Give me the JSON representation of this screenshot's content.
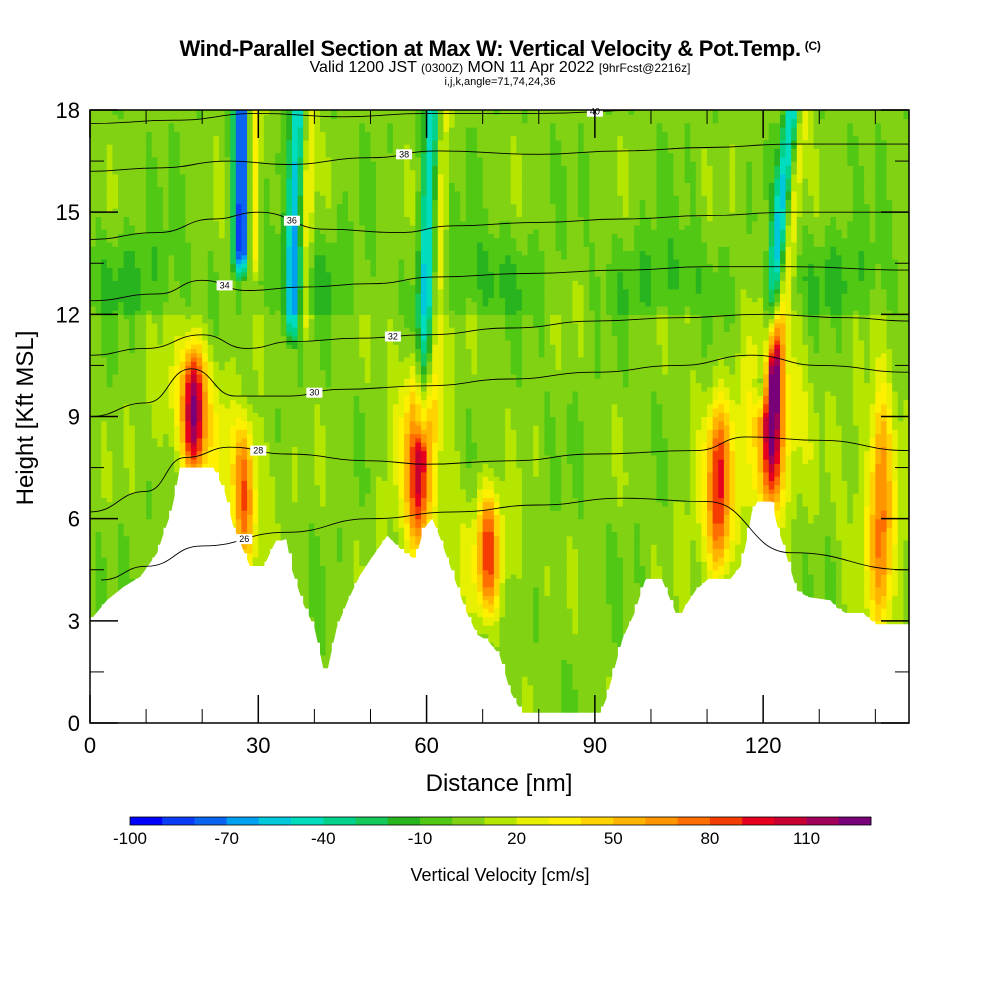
{
  "title": "Wind-Parallel Section at Max W: Vertical Velocity & Pot.Temp.",
  "copyright_mark": "(C)",
  "subtitle_main": "Valid 1200 JST",
  "subtitle_zulu": "(0300Z)",
  "subtitle_date": "MON 11 Apr 2022",
  "subtitle_fcst": "[9hrFcst@2216z]",
  "params": "i,j,k,angle=71,74,24,36",
  "chart_data": {
    "type": "heatmap",
    "xlabel": "Distance [nm]",
    "ylabel": "Height [Kft MSL]",
    "xlim": [
      0,
      146
    ],
    "ylim": [
      0,
      18
    ],
    "x_ticks": [
      0,
      30,
      60,
      90,
      120
    ],
    "y_ticks": [
      0,
      3,
      6,
      9,
      12,
      15,
      18
    ],
    "grid": false,
    "terrain": [
      [
        0,
        3.0
      ],
      [
        1.5,
        3.3
      ],
      [
        3,
        3.6
      ],
      [
        6,
        4.0
      ],
      [
        9,
        4.3
      ],
      [
        12,
        5.0
      ],
      [
        13,
        5.5
      ],
      [
        14.5,
        6.2
      ],
      [
        15.5,
        7.0
      ],
      [
        16,
        7.5
      ],
      [
        22,
        7.5
      ],
      [
        24,
        6.8
      ],
      [
        25.5,
        5.8
      ],
      [
        27,
        5.2
      ],
      [
        28.5,
        4.6
      ],
      [
        31,
        4.6
      ],
      [
        33,
        5.3
      ],
      [
        35,
        5.4
      ],
      [
        36,
        4.5
      ],
      [
        38,
        3.5
      ],
      [
        40,
        2.8
      ],
      [
        42,
        1.3
      ],
      [
        44,
        2.8
      ],
      [
        46,
        3.6
      ],
      [
        48,
        4.3
      ],
      [
        50,
        4.8
      ],
      [
        53,
        5.5
      ],
      [
        56,
        5.0
      ],
      [
        58,
        4.8
      ],
      [
        59.5,
        5.7
      ],
      [
        61,
        6.0
      ],
      [
        62.5,
        5.4
      ],
      [
        64,
        4.7
      ],
      [
        65.5,
        4.0
      ],
      [
        67,
        3.3
      ],
      [
        69,
        2.6
      ],
      [
        71,
        2.4
      ],
      [
        73,
        2.0
      ],
      [
        75,
        0.9
      ],
      [
        77,
        0.3
      ],
      [
        84,
        0.3
      ],
      [
        85,
        0.3
      ],
      [
        91,
        0.3
      ],
      [
        92,
        0.7
      ],
      [
        93,
        1.3
      ],
      [
        95,
        2.5
      ],
      [
        97,
        3.2
      ],
      [
        99,
        4.2
      ],
      [
        102,
        4.2
      ],
      [
        104,
        3.4
      ],
      [
        105,
        3.0
      ],
      [
        106,
        3.4
      ],
      [
        108,
        3.9
      ],
      [
        110,
        4.2
      ],
      [
        114,
        4.2
      ],
      [
        116,
        4.6
      ],
      [
        117,
        5.3
      ],
      [
        118,
        6.2
      ],
      [
        119,
        6.5
      ],
      [
        121.5,
        6.5
      ],
      [
        122.5,
        5.8
      ],
      [
        124,
        5.0
      ],
      [
        126,
        3.9
      ],
      [
        128,
        3.7
      ],
      [
        132,
        3.6
      ],
      [
        133,
        3.4
      ],
      [
        135,
        3.2
      ],
      [
        138,
        3.2
      ],
      [
        140,
        2.9
      ],
      [
        146,
        2.9
      ]
    ],
    "colorbar": {
      "label": "Vertical Velocity [cm/s]",
      "levels": [
        -100,
        -90,
        -80,
        -70,
        -60,
        -50,
        -40,
        -30,
        -20,
        -10,
        0,
        10,
        20,
        30,
        40,
        50,
        60,
        70,
        80,
        90,
        100,
        110,
        120,
        130
      ],
      "tick_labels": [
        "-100",
        "-70",
        "-40",
        "-10",
        "20",
        "50",
        "80",
        "110"
      ],
      "tick_values": [
        -100,
        -70,
        -40,
        -10,
        20,
        50,
        80,
        110
      ],
      "colors": [
        "#0000ff",
        "#0a3cf5",
        "#0a64f0",
        "#00a0f0",
        "#00c8dc",
        "#00dcbe",
        "#00d28c",
        "#14c85a",
        "#28b41e",
        "#50c814",
        "#82d214",
        "#b4e600",
        "#e6f000",
        "#fff000",
        "#ffd200",
        "#ffb400",
        "#ff9600",
        "#ff6e00",
        "#f53c00",
        "#e6001e",
        "#c80032",
        "#a0005a",
        "#780078"
      ]
    },
    "updraft_cores": [
      {
        "x": 18.5,
        "y_bottom": 7.6,
        "y_top": 10.8,
        "w_max": 90
      },
      {
        "x": 27.5,
        "y_bottom": 5.0,
        "y_top": 8.5,
        "w_max": 55
      },
      {
        "x": 58.5,
        "y_bottom": 5.2,
        "y_top": 10.2,
        "w_max": 75
      },
      {
        "x": 71,
        "y_bottom": 3.5,
        "y_top": 6.5,
        "w_max": 60
      },
      {
        "x": 112,
        "y_bottom": 4.5,
        "y_top": 9.0,
        "w_max": 65
      },
      {
        "x": 121.5,
        "y_bottom": 6.6,
        "y_top": 11.5,
        "w_max": 100
      },
      {
        "x": 141,
        "y_bottom": 3.2,
        "y_top": 9.5,
        "w_max": 55
      }
    ],
    "downdraft_bands": [
      {
        "x_top": 27,
        "x_bottom": 27,
        "y_bottom": 14,
        "y_top": 18,
        "w_min": -95
      },
      {
        "x_top": 37,
        "x_bottom": 36,
        "y_bottom": 12,
        "y_top": 18,
        "w_min": -60
      },
      {
        "x_top": 61,
        "x_bottom": 59,
        "y_bottom": 9,
        "y_top": 18,
        "w_min": -55
      },
      {
        "x_top": 125,
        "x_bottom": 120,
        "y_bottom": 10,
        "y_top": 18,
        "w_min": -55
      }
    ],
    "theta_contours": [
      {
        "label": "26",
        "points": [
          [
            2,
            4.2
          ],
          [
            10,
            4.6
          ],
          [
            20,
            5.2
          ],
          [
            35,
            5.6
          ],
          [
            50,
            6.0
          ],
          [
            65,
            6.2
          ],
          [
            80,
            6.4
          ],
          [
            95,
            6.6
          ],
          [
            110,
            6.5
          ],
          [
            125,
            5.0
          ],
          [
            146,
            4.5
          ]
        ]
      },
      {
        "label": "28",
        "points": [
          [
            0,
            6.2
          ],
          [
            10,
            6.8
          ],
          [
            17,
            7.8
          ],
          [
            25,
            8.1
          ],
          [
            35,
            7.9
          ],
          [
            50,
            7.7
          ],
          [
            60,
            7.6
          ],
          [
            75,
            7.7
          ],
          [
            90,
            7.9
          ],
          [
            108,
            8.0
          ],
          [
            117,
            8.4
          ],
          [
            130,
            8.3
          ],
          [
            146,
            8.0
          ]
        ]
      },
      {
        "label": "30",
        "points": [
          [
            0,
            9.0
          ],
          [
            10,
            9.4
          ],
          [
            18,
            10.4
          ],
          [
            26,
            9.6
          ],
          [
            35,
            9.6
          ],
          [
            45,
            9.8
          ],
          [
            60,
            9.9
          ],
          [
            75,
            10.1
          ],
          [
            90,
            10.3
          ],
          [
            105,
            10.5
          ],
          [
            118,
            10.8
          ],
          [
            130,
            10.5
          ],
          [
            146,
            10.3
          ]
        ]
      },
      {
        "label": "32",
        "points": [
          [
            0,
            10.8
          ],
          [
            10,
            11.0
          ],
          [
            20,
            11.4
          ],
          [
            28,
            11.0
          ],
          [
            36,
            11.2
          ],
          [
            48,
            11.3
          ],
          [
            60,
            11.4
          ],
          [
            75,
            11.6
          ],
          [
            90,
            11.8
          ],
          [
            105,
            11.9
          ],
          [
            120,
            12.0
          ],
          [
            135,
            11.9
          ],
          [
            146,
            11.8
          ]
        ]
      },
      {
        "label": "34",
        "points": [
          [
            0,
            12.4
          ],
          [
            12,
            12.6
          ],
          [
            20,
            13.0
          ],
          [
            28,
            12.7
          ],
          [
            38,
            12.8
          ],
          [
            50,
            12.9
          ],
          [
            62,
            13.1
          ],
          [
            78,
            13.2
          ],
          [
            95,
            13.3
          ],
          [
            110,
            13.4
          ],
          [
            125,
            13.4
          ],
          [
            146,
            13.3
          ]
        ]
      },
      {
        "label": "36",
        "points": [
          [
            0,
            14.2
          ],
          [
            12,
            14.4
          ],
          [
            22,
            14.8
          ],
          [
            30,
            15.0
          ],
          [
            42,
            14.5
          ],
          [
            55,
            14.4
          ],
          [
            65,
            14.6
          ],
          [
            80,
            14.7
          ],
          [
            95,
            14.8
          ],
          [
            110,
            14.9
          ],
          [
            125,
            15.0
          ],
          [
            146,
            15.0
          ]
        ]
      },
      {
        "label": "38",
        "points": [
          [
            0,
            16.2
          ],
          [
            12,
            16.3
          ],
          [
            25,
            16.5
          ],
          [
            35,
            16.4
          ],
          [
            50,
            16.6
          ],
          [
            62,
            16.8
          ],
          [
            80,
            16.7
          ],
          [
            95,
            16.8
          ],
          [
            110,
            16.9
          ],
          [
            125,
            17.0
          ],
          [
            146,
            17.0
          ]
        ]
      },
      {
        "label": "40",
        "points": [
          [
            0,
            17.6
          ],
          [
            15,
            17.7
          ],
          [
            30,
            17.9
          ],
          [
            45,
            17.8
          ],
          [
            60,
            17.9
          ],
          [
            80,
            17.9
          ],
          [
            100,
            18.0
          ],
          [
            146,
            18.0
          ]
        ]
      }
    ]
  }
}
